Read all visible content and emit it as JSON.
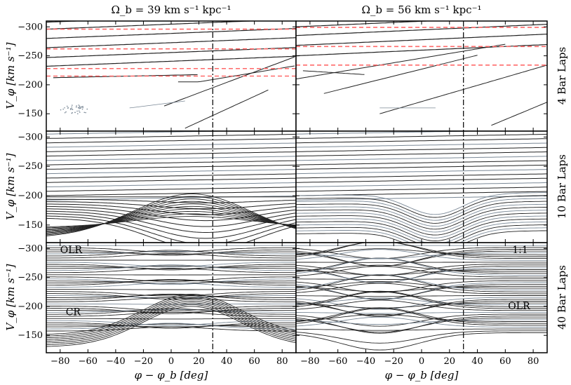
{
  "chart_data": {
    "type": "line",
    "column_titles": [
      "Ω_b = 39 km s⁻¹ kpc⁻¹",
      "Ω_b = 56 km s⁻¹ kpc⁻¹"
    ],
    "row_labels": [
      "4 Bar Laps",
      "10 Bar Laps",
      "40 Bar Laps"
    ],
    "xlabel": "φ − φ_b [deg]",
    "ylabel": "V_φ [km s⁻¹]",
    "xlim": [
      -90,
      90
    ],
    "ylim": [
      -310,
      -120
    ],
    "y_inverted": true,
    "xticks": [
      -80,
      -60,
      -40,
      -20,
      0,
      20,
      40,
      60,
      80
    ],
    "yticks": [
      -300,
      -250,
      -200,
      -150
    ],
    "xtick_labels": [
      "−80",
      "−60",
      "−40",
      "−20",
      "0",
      "20",
      "40",
      "60",
      "80"
    ],
    "ytick_labels": [
      "−300",
      "−250",
      "−200",
      "−150"
    ],
    "bar_angle_line_x": 30,
    "resonance_lines": {
      "left": [
        -296,
        -262,
        -228,
        -215
      ],
      "right": [
        -299,
        -266,
        -234
      ]
    },
    "annotations": [
      {
        "panel": "bottom-left",
        "text": "OLR",
        "x": -80,
        "y": -292
      },
      {
        "panel": "bottom-left",
        "text": "CR",
        "x": -76,
        "y": -185
      },
      {
        "panel": "bottom-right",
        "text": "1:1",
        "x": 65,
        "y": -292
      },
      {
        "panel": "bottom-right",
        "text": "OLR",
        "x": 62,
        "y": -195
      }
    ]
  },
  "colors": {
    "streak": "#222222",
    "streak_light": "#7a8896",
    "resonance": "#ff6a6a",
    "dashdot": "#111111"
  }
}
